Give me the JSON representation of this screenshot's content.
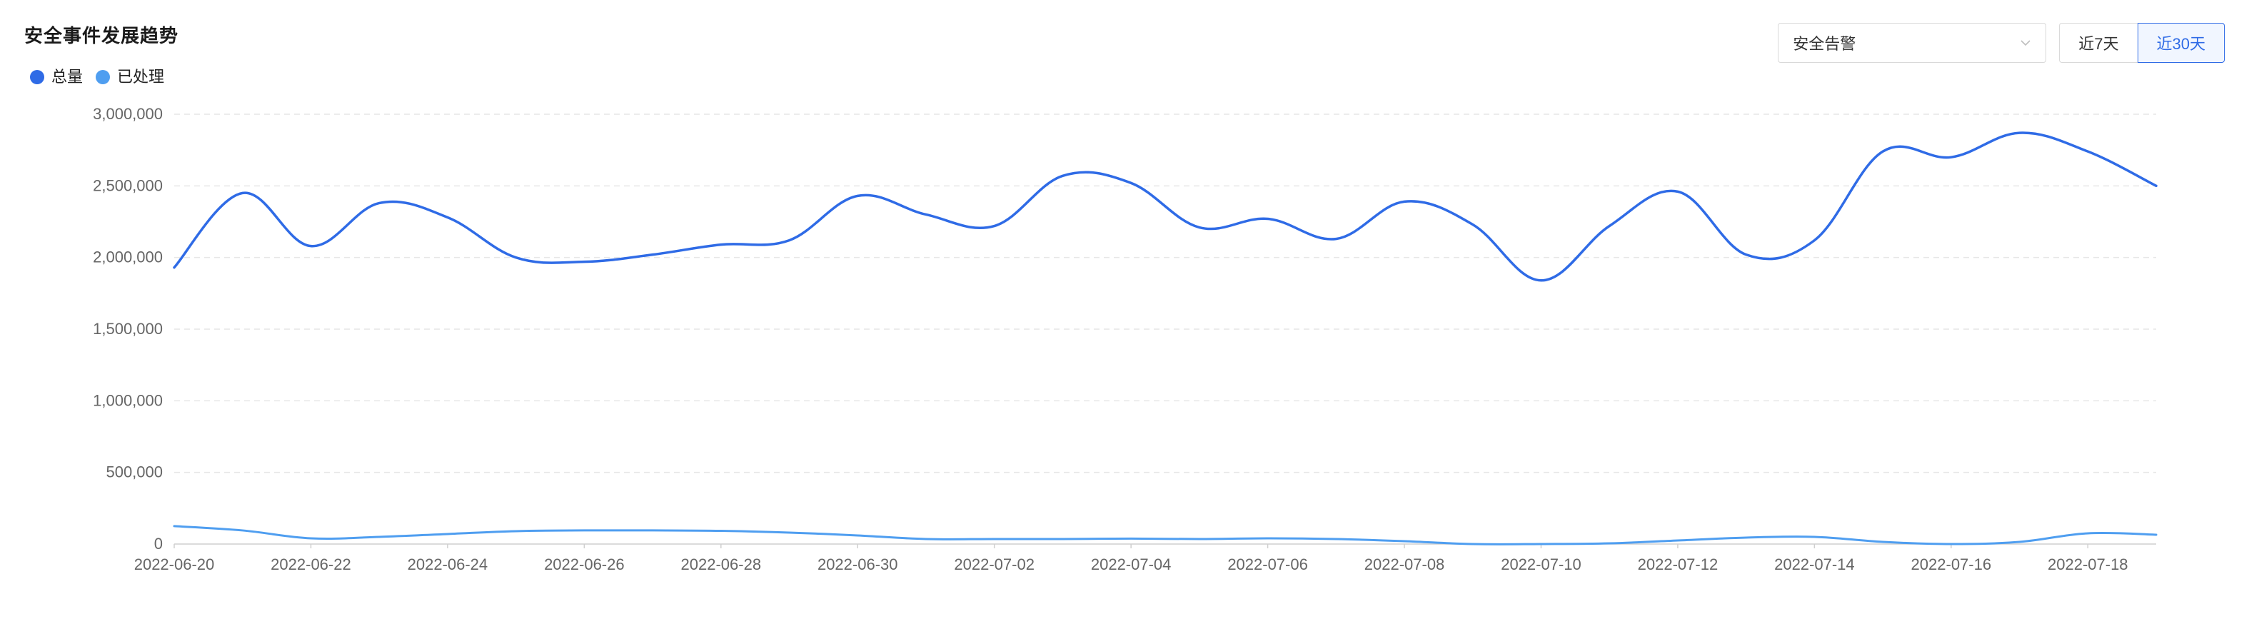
{
  "header": {
    "title": "安全事件发展趋势"
  },
  "controls": {
    "select_value": "安全告警",
    "ranges": [
      {
        "label": "近7天",
        "active": false
      },
      {
        "label": "近30天",
        "active": true
      }
    ]
  },
  "colors": {
    "total": "#2f6be6",
    "handled": "#4f9ef0",
    "accent": "#2f6be6",
    "grid": "#e6e6e6",
    "axis_text": "#666666"
  },
  "chart_data": {
    "type": "line",
    "title": "安全事件发展趋势",
    "xlabel": "",
    "ylabel": "",
    "ylim": [
      0,
      3000000
    ],
    "yticks": [
      0,
      500000,
      1000000,
      1500000,
      2000000,
      2500000,
      3000000
    ],
    "ytick_labels": [
      "0",
      "500,000",
      "1,000,000",
      "1,500,000",
      "2,000,000",
      "2,500,000",
      "3,000,000"
    ],
    "grid": true,
    "legend_position": "top-left",
    "x": [
      "2022-06-20",
      "2022-06-21",
      "2022-06-22",
      "2022-06-23",
      "2022-06-24",
      "2022-06-25",
      "2022-06-26",
      "2022-06-27",
      "2022-06-28",
      "2022-06-29",
      "2022-06-30",
      "2022-07-01",
      "2022-07-02",
      "2022-07-03",
      "2022-07-04",
      "2022-07-05",
      "2022-07-06",
      "2022-07-07",
      "2022-07-08",
      "2022-07-09",
      "2022-07-10",
      "2022-07-11",
      "2022-07-12",
      "2022-07-13",
      "2022-07-14",
      "2022-07-15",
      "2022-07-16",
      "2022-07-17",
      "2022-07-18",
      "2022-07-19"
    ],
    "xtick_labels": [
      "2022-06-20",
      "2022-06-22",
      "2022-06-24",
      "2022-06-26",
      "2022-06-28",
      "2022-06-30",
      "2022-07-02",
      "2022-07-04",
      "2022-07-06",
      "2022-07-08",
      "2022-07-10",
      "2022-07-12",
      "2022-07-14",
      "2022-07-16",
      "2022-07-18"
    ],
    "series": [
      {
        "name": "总量",
        "color": "#2f6be6",
        "values": [
          1930000,
          2450000,
          2080000,
          2380000,
          2280000,
          2000000,
          1970000,
          2020000,
          2090000,
          2120000,
          2430000,
          2300000,
          2220000,
          2570000,
          2520000,
          2210000,
          2270000,
          2130000,
          2390000,
          2230000,
          1840000,
          2220000,
          2460000,
          2020000,
          2120000,
          2740000,
          2700000,
          2870000,
          2740000,
          2500000
        ]
      },
      {
        "name": "已处理",
        "color": "#4f9ef0",
        "values": [
          125000,
          95000,
          40000,
          50000,
          70000,
          90000,
          95000,
          95000,
          92000,
          80000,
          60000,
          35000,
          35000,
          35000,
          38000,
          35000,
          40000,
          35000,
          20000,
          0,
          0,
          5000,
          25000,
          45000,
          50000,
          15000,
          0,
          15000,
          75000,
          65000
        ]
      }
    ]
  }
}
